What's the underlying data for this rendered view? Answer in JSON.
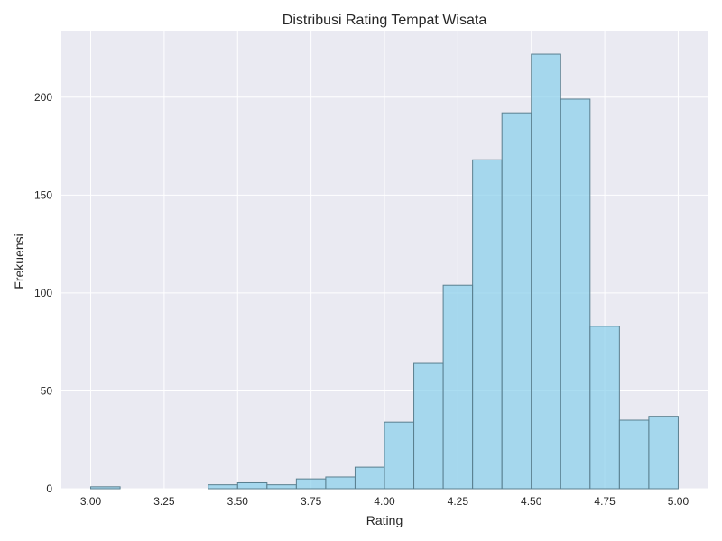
{
  "colors": {
    "plot_background": "#eaeaf2",
    "grid": "#ffffff",
    "bar_fill": "#87ceeb",
    "bar_edge": "#5a7f8f",
    "text": "#262626"
  },
  "chart_data": {
    "type": "bar",
    "title": "Distribusi Rating Tempat Wisata",
    "xlabel": "Rating",
    "ylabel": "Frekuensi",
    "xlim": [
      2.9,
      5.1
    ],
    "ylim": [
      0,
      234
    ],
    "grid": true,
    "x_ticks": [
      "3.00",
      "3.25",
      "3.50",
      "3.75",
      "4.00",
      "4.25",
      "4.50",
      "4.75",
      "5.00"
    ],
    "y_ticks": [
      "0",
      "50",
      "100",
      "150",
      "200"
    ],
    "bin_edges": [
      3.0,
      3.1,
      3.2,
      3.3,
      3.4,
      3.5,
      3.6,
      3.7,
      3.8,
      3.9,
      4.0,
      4.1,
      4.2,
      4.3,
      4.4,
      4.5,
      4.6,
      4.7,
      4.8,
      4.9,
      5.0
    ],
    "values": [
      1,
      0,
      0,
      0,
      2,
      3,
      2,
      5,
      6,
      11,
      34,
      64,
      104,
      168,
      192,
      222,
      199,
      83,
      35,
      37
    ]
  }
}
